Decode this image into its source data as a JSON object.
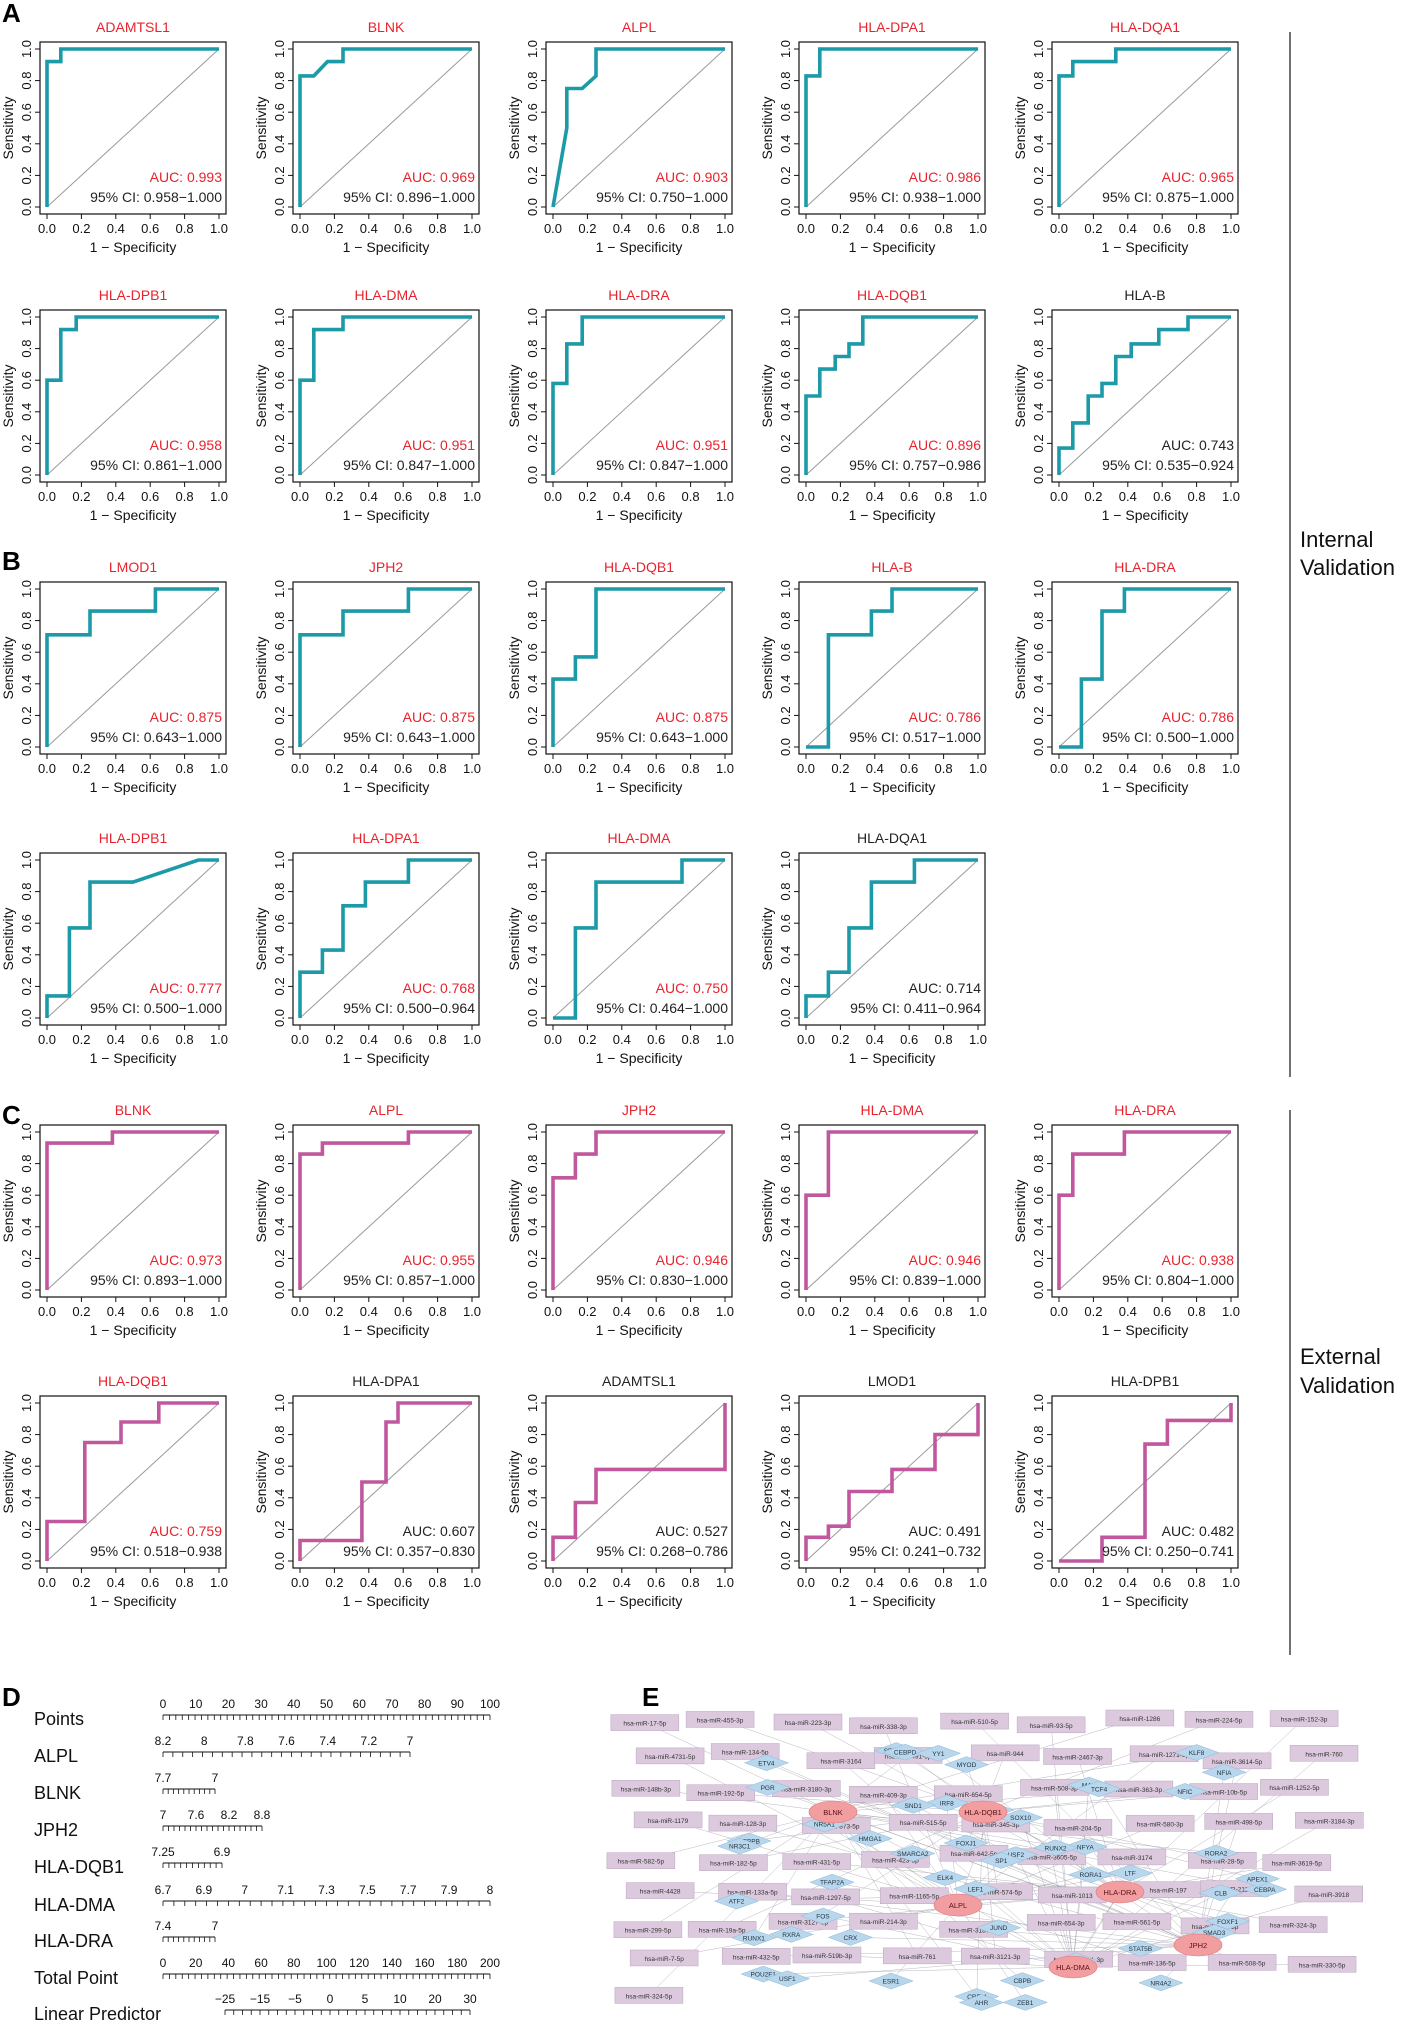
{
  "colors": {
    "teal": "#1c9aa8",
    "pink": "#c1589e",
    "red": "#e8232d",
    "black": "#222222",
    "gray": "#9a9a9a",
    "node_purple": "#dcc9de",
    "node_blue": "#b8d7ec",
    "node_pink": "#f29ea0"
  },
  "panel_labels": {
    "A": "A",
    "B": "B",
    "C": "C",
    "D": "D",
    "E": "E"
  },
  "side_labels": {
    "internal": [
      "Internal",
      "Validation"
    ],
    "external": [
      "External",
      "Validation"
    ]
  },
  "axis_labels": {
    "x": "1 − Specificity",
    "y": "Sensitivity",
    "ticks": [
      "0.0",
      "0.2",
      "0.4",
      "0.6",
      "0.8",
      "1.0"
    ]
  },
  "chart_data": [
    {
      "panel": "A",
      "type": "line",
      "title": "ADAMTSL1",
      "auc": "AUC: 0.993",
      "ci": "95% CI: 0.958−1.000",
      "sig": true,
      "color": "teal",
      "x": [
        0,
        0,
        0.0,
        0.08,
        0.08,
        1
      ],
      "y": [
        0,
        0.92,
        0.92,
        0.92,
        1,
        1
      ]
    },
    {
      "panel": "A",
      "type": "line",
      "title": "BLNK",
      "auc": "AUC: 0.969",
      "ci": "95% CI: 0.896−1.000",
      "sig": true,
      "color": "teal",
      "x": [
        0,
        0,
        0.08,
        0.16,
        0.25,
        0.25,
        1
      ],
      "y": [
        0,
        0.83,
        0.83,
        0.92,
        0.92,
        1,
        1
      ]
    },
    {
      "panel": "A",
      "type": "line",
      "title": "ALPL",
      "auc": "AUC: 0.903",
      "ci": "95% CI: 0.750−1.000",
      "sig": true,
      "color": "teal",
      "x": [
        0,
        0.08,
        0.08,
        0.17,
        0.25,
        0.25,
        1
      ],
      "y": [
        0,
        0.5,
        0.75,
        0.75,
        0.83,
        1,
        1
      ]
    },
    {
      "panel": "A",
      "type": "line",
      "title": "HLA-DPA1",
      "auc": "AUC: 0.986",
      "ci": "95% CI: 0.938−1.000",
      "sig": true,
      "color": "teal",
      "x": [
        0,
        0,
        0.08,
        0.08,
        1
      ],
      "y": [
        0,
        0.83,
        0.83,
        1,
        1
      ]
    },
    {
      "panel": "A",
      "type": "line",
      "title": "HLA-DQA1",
      "auc": "AUC: 0.965",
      "ci": "95% CI: 0.875−1.000",
      "sig": true,
      "color": "teal",
      "x": [
        0,
        0,
        0.08,
        0.08,
        0.33,
        0.33,
        1
      ],
      "y": [
        0,
        0.83,
        0.83,
        0.92,
        0.92,
        1,
        1
      ]
    },
    {
      "panel": "A",
      "type": "line",
      "title": "HLA-DPB1",
      "auc": "AUC: 0.958",
      "ci": "95% CI: 0.861−1.000",
      "sig": true,
      "color": "teal",
      "x": [
        0,
        0,
        0.08,
        0.08,
        0.17,
        0.17,
        1
      ],
      "y": [
        0,
        0.6,
        0.6,
        0.92,
        0.92,
        1,
        1
      ]
    },
    {
      "panel": "A",
      "type": "line",
      "title": "HLA-DMA",
      "auc": "AUC: 0.951",
      "ci": "95% CI: 0.847−1.000",
      "sig": true,
      "color": "teal",
      "x": [
        0,
        0,
        0.08,
        0.08,
        0.25,
        0.25,
        1
      ],
      "y": [
        0,
        0.6,
        0.6,
        0.92,
        0.92,
        1,
        1
      ]
    },
    {
      "panel": "A",
      "type": "line",
      "title": "HLA-DRA",
      "auc": "AUC: 0.951",
      "ci": "95% CI: 0.847−1.000",
      "sig": true,
      "color": "teal",
      "x": [
        0,
        0,
        0.08,
        0.08,
        0.17,
        0.17,
        1
      ],
      "y": [
        0,
        0.58,
        0.58,
        0.83,
        0.83,
        1,
        1
      ]
    },
    {
      "panel": "A",
      "type": "line",
      "title": "HLA-DQB1",
      "auc": "AUC: 0.896",
      "ci": "95% CI: 0.757−0.986",
      "sig": true,
      "color": "teal",
      "x": [
        0,
        0,
        0.08,
        0.08,
        0.17,
        0.17,
        0.25,
        0.25,
        0.33,
        0.33,
        1
      ],
      "y": [
        0,
        0.5,
        0.5,
        0.67,
        0.67,
        0.75,
        0.75,
        0.83,
        0.83,
        1,
        1
      ]
    },
    {
      "panel": "A",
      "type": "line",
      "title": "HLA-B",
      "auc": "AUC: 0.743",
      "ci": "95% CI: 0.535−0.924",
      "sig": false,
      "color": "teal",
      "x": [
        0,
        0,
        0.08,
        0.08,
        0.17,
        0.17,
        0.25,
        0.25,
        0.33,
        0.33,
        0.42,
        0.42,
        0.58,
        0.58,
        0.75,
        0.75,
        1
      ],
      "y": [
        0,
        0.17,
        0.17,
        0.33,
        0.33,
        0.5,
        0.5,
        0.58,
        0.58,
        0.75,
        0.75,
        0.83,
        0.83,
        0.92,
        0.92,
        1,
        1
      ]
    },
    {
      "panel": "B",
      "type": "line",
      "title": "LMOD1",
      "auc": "AUC: 0.875",
      "ci": "95% CI: 0.643−1.000",
      "sig": true,
      "color": "teal",
      "x": [
        0,
        0,
        0.25,
        0.25,
        0.63,
        0.63,
        1
      ],
      "y": [
        0,
        0.71,
        0.71,
        0.86,
        0.86,
        1,
        1
      ]
    },
    {
      "panel": "B",
      "type": "line",
      "title": "JPH2",
      "auc": "AUC: 0.875",
      "ci": "95% CI: 0.643−1.000",
      "sig": true,
      "color": "teal",
      "x": [
        0,
        0,
        0.25,
        0.25,
        0.63,
        0.63,
        1
      ],
      "y": [
        0,
        0.71,
        0.71,
        0.86,
        0.86,
        1,
        1
      ]
    },
    {
      "panel": "B",
      "type": "line",
      "title": "HLA-DQB1",
      "auc": "AUC: 0.875",
      "ci": "95% CI: 0.643−1.000",
      "sig": true,
      "color": "teal",
      "x": [
        0,
        0,
        0.13,
        0.13,
        0.25,
        0.25,
        1
      ],
      "y": [
        0,
        0.43,
        0.43,
        0.57,
        0.57,
        1,
        1
      ]
    },
    {
      "panel": "B",
      "type": "line",
      "title": "HLA-B",
      "auc": "AUC: 0.786",
      "ci": "95% CI: 0.517−1.000",
      "sig": true,
      "color": "teal",
      "x": [
        0,
        0.13,
        0.13,
        0.38,
        0.38,
        0.5,
        0.5,
        1
      ],
      "y": [
        0,
        0,
        0.71,
        0.71,
        0.86,
        0.86,
        1,
        1
      ]
    },
    {
      "panel": "B",
      "type": "line",
      "title": "HLA-DRA",
      "auc": "AUC: 0.786",
      "ci": "95% CI: 0.500−1.000",
      "sig": true,
      "color": "teal",
      "x": [
        0,
        0.13,
        0.13,
        0.25,
        0.25,
        0.38,
        0.38,
        1
      ],
      "y": [
        0,
        0,
        0.43,
        0.43,
        0.86,
        0.86,
        1,
        1
      ]
    },
    {
      "panel": "B",
      "type": "line",
      "title": "HLA-DPB1",
      "auc": "AUC: 0.777",
      "ci": "95% CI: 0.500−1.000",
      "sig": true,
      "color": "teal",
      "x": [
        0,
        0,
        0.13,
        0.13,
        0.25,
        0.25,
        0.5,
        0.88,
        1
      ],
      "y": [
        0,
        0.14,
        0.14,
        0.57,
        0.57,
        0.86,
        0.86,
        1,
        1
      ]
    },
    {
      "panel": "B",
      "type": "line",
      "title": "HLA-DPA1",
      "auc": "AUC: 0.768",
      "ci": "95% CI: 0.500−0.964",
      "sig": true,
      "color": "teal",
      "x": [
        0,
        0,
        0.13,
        0.13,
        0.25,
        0.25,
        0.38,
        0.38,
        0.63,
        0.63,
        1
      ],
      "y": [
        0,
        0.29,
        0.29,
        0.43,
        0.43,
        0.71,
        0.71,
        0.86,
        0.86,
        1,
        1
      ]
    },
    {
      "panel": "B",
      "type": "line",
      "title": "HLA-DMA",
      "auc": "AUC: 0.750",
      "ci": "95% CI: 0.464−1.000",
      "sig": true,
      "color": "teal",
      "x": [
        0,
        0.13,
        0.13,
        0.25,
        0.25,
        0.75,
        0.75,
        1
      ],
      "y": [
        0,
        0,
        0.57,
        0.57,
        0.86,
        0.86,
        1,
        1
      ]
    },
    {
      "panel": "B",
      "type": "line",
      "title": "HLA-DQA1",
      "auc": "AUC: 0.714",
      "ci": "95% CI: 0.411−0.964",
      "sig": false,
      "color": "teal",
      "x": [
        0,
        0,
        0.13,
        0.13,
        0.25,
        0.25,
        0.38,
        0.38,
        0.63,
        0.63,
        1
      ],
      "y": [
        0,
        0.14,
        0.14,
        0.29,
        0.29,
        0.57,
        0.57,
        0.86,
        0.86,
        1,
        1
      ]
    },
    {
      "panel": "C",
      "type": "line",
      "title": "BLNK",
      "auc": "AUC: 0.973",
      "ci": "95% CI: 0.893−1.000",
      "sig": true,
      "color": "pink",
      "x": [
        0,
        0,
        0.38,
        0.38,
        1
      ],
      "y": [
        0,
        0.93,
        0.93,
        1,
        1
      ]
    },
    {
      "panel": "C",
      "type": "line",
      "title": "ALPL",
      "auc": "AUC: 0.955",
      "ci": "95% CI: 0.857−1.000",
      "sig": true,
      "color": "pink",
      "x": [
        0,
        0,
        0.13,
        0.13,
        0.63,
        0.63,
        1
      ],
      "y": [
        0,
        0.86,
        0.86,
        0.93,
        0.93,
        1,
        1
      ]
    },
    {
      "panel": "C",
      "type": "line",
      "title": "JPH2",
      "auc": "AUC: 0.946",
      "ci": "95% CI: 0.830−1.000",
      "sig": true,
      "color": "pink",
      "x": [
        0,
        0,
        0.13,
        0.13,
        0.25,
        0.25,
        1
      ],
      "y": [
        0,
        0.71,
        0.71,
        0.86,
        0.86,
        1,
        1
      ]
    },
    {
      "panel": "C",
      "type": "line",
      "title": "HLA-DMA",
      "auc": "AUC: 0.946",
      "ci": "95% CI: 0.839−1.000",
      "sig": true,
      "color": "pink",
      "x": [
        0,
        0,
        0.13,
        0.13,
        1
      ],
      "y": [
        0,
        0.6,
        0.6,
        1,
        1
      ]
    },
    {
      "panel": "C",
      "type": "line",
      "title": "HLA-DRA",
      "auc": "AUC: 0.938",
      "ci": "95% CI: 0.804−1.000",
      "sig": true,
      "color": "pink",
      "x": [
        0,
        0,
        0.08,
        0.08,
        0.38,
        0.38,
        1
      ],
      "y": [
        0,
        0.6,
        0.6,
        0.86,
        0.86,
        1,
        1
      ]
    },
    {
      "panel": "C",
      "type": "line",
      "title": "HLA-DQB1",
      "auc": "AUC: 0.759",
      "ci": "95% CI: 0.518−0.938",
      "sig": true,
      "color": "pink",
      "x": [
        0,
        0,
        0.22,
        0.22,
        0.43,
        0.43,
        0.65,
        0.65,
        1
      ],
      "y": [
        0,
        0.25,
        0.25,
        0.75,
        0.75,
        0.88,
        0.88,
        1,
        1
      ]
    },
    {
      "panel": "C",
      "type": "line",
      "title": "HLA-DPA1",
      "auc": "AUC: 0.607",
      "ci": "95% CI: 0.357−0.830",
      "sig": false,
      "color": "pink",
      "x": [
        0,
        0,
        0.36,
        0.36,
        0.5,
        0.5,
        0.57,
        0.57,
        1
      ],
      "y": [
        0,
        0.13,
        0.13,
        0.5,
        0.5,
        0.88,
        0.88,
        1,
        1
      ]
    },
    {
      "panel": "C",
      "type": "line",
      "title": "ADAMTSL1",
      "auc": "AUC: 0.527",
      "ci": "95% CI: 0.268−0.786",
      "sig": false,
      "color": "pink",
      "x": [
        0,
        0,
        0.13,
        0.13,
        0.25,
        0.25,
        1,
        1
      ],
      "y": [
        0,
        0.15,
        0.15,
        0.37,
        0.37,
        0.58,
        0.58,
        1
      ]
    },
    {
      "panel": "C",
      "type": "line",
      "title": "LMOD1",
      "auc": "AUC: 0.491",
      "ci": "95% CI: 0.241−0.732",
      "sig": false,
      "color": "pink",
      "x": [
        0,
        0,
        0.13,
        0.13,
        0.25,
        0.25,
        0.5,
        0.5,
        0.75,
        0.75,
        1,
        1
      ],
      "y": [
        0,
        0.15,
        0.15,
        0.22,
        0.22,
        0.44,
        0.44,
        0.58,
        0.58,
        0.8,
        0.8,
        1
      ]
    },
    {
      "panel": "C",
      "type": "line",
      "title": "HLA-DPB1",
      "auc": "AUC: 0.482",
      "ci": "95% CI: 0.250−0.741",
      "sig": false,
      "color": "pink",
      "x": [
        0,
        0.25,
        0.25,
        0.5,
        0.5,
        0.63,
        0.63,
        1,
        1
      ],
      "y": [
        0,
        0,
        0.15,
        0.15,
        0.74,
        0.74,
        0.89,
        0.89,
        1
      ]
    }
  ],
  "nomogram": {
    "rows": [
      {
        "label": "Points",
        "ticks": [
          "0",
          "10",
          "20",
          "30",
          "40",
          "50",
          "60",
          "70",
          "80",
          "90",
          "100"
        ]
      },
      {
        "label": "ALPL",
        "ticks": [
          "8.2",
          "8",
          "7.8",
          "7.6",
          "7.4",
          "7.2",
          "7"
        ]
      },
      {
        "label": "BLNK",
        "ticks": [
          "7.7",
          "7"
        ]
      },
      {
        "label": "JPH2",
        "ticks": [
          "7",
          "7.6",
          "8.2",
          "8.8"
        ]
      },
      {
        "label": "HLA-DQB1",
        "ticks": [
          "7.25",
          "6.9"
        ]
      },
      {
        "label": "HLA-DMA",
        "ticks": [
          "6.7",
          "6.9",
          "7",
          "7.1",
          "7.3",
          "7.5",
          "7.7",
          "7.9",
          "8"
        ]
      },
      {
        "label": "HLA-DRA",
        "ticks": [
          "7.4",
          "7"
        ]
      },
      {
        "label": "Total Point",
        "ticks": [
          "0",
          "20",
          "40",
          "60",
          "80",
          "100",
          "120",
          "140",
          "160",
          "180",
          "200"
        ]
      },
      {
        "label": "Linear Predictor",
        "ticks": [
          "−25",
          "−15",
          "−5",
          "0",
          "5",
          "10",
          "20",
          "30"
        ]
      }
    ]
  },
  "network": {
    "hubs": [
      "BLNK",
      "HLA-DQB1",
      "HLA-DRA",
      "ALPL",
      "JPH2",
      "HLA-DMA"
    ],
    "tfs": [
      "HMGA1",
      "POU2F1",
      "ETV4",
      "NR5A1",
      "ATF2",
      "FOXJ1",
      "CBPB",
      "USF2",
      "USF1",
      "RORA1",
      "FOXF1",
      "CREM",
      "RORA2",
      "JUND",
      "NR4A2",
      "ZEB1",
      "MYC",
      "MYOD",
      "CEBPA",
      "NFYA",
      "STAT5B",
      "SP1",
      "SMAD3",
      "CEBPB",
      "AHR",
      "MAX",
      "TCF4",
      "TFAP2A",
      "SREBF1",
      "APEX1",
      "NR3C1",
      "FOS",
      "CRX",
      "ESR1",
      "RUNX2",
      "NFIC",
      "SMARCA2",
      "CLB",
      "PGR",
      "MAPK14",
      "ELK4",
      "CEBPD",
      "RUNX1",
      "LEF1",
      "NFIA",
      "IRF8",
      "YY1",
      "RXRA",
      "KLF8",
      "SOX10",
      "SND1",
      "LTF"
    ],
    "mirnas": [
      "hsa-miR-17-5p",
      "hsa-miR-455-3p",
      "hsa-miR-223-3p",
      "hsa-miR-338-3p",
      "hsa-miR-510-5p",
      "hsa-miR-93-5p",
      "hsa-miR-1286",
      "hsa-miR-224-5p",
      "hsa-miR-152-3p",
      "hsa-miR-4731-5p",
      "hsa-miR-134-5p",
      "hsa-miR-3164",
      "hsa-miR-491-5p",
      "hsa-miR-944",
      "hsa-miR-2467-3p",
      "hsa-miR-1271-5p",
      "hsa-miR-3614-5p",
      "hsa-miR-760",
      "hsa-miR-148b-3p",
      "hsa-miR-192-5p",
      "hsa-miR-3180-3p",
      "hsa-miR-409-3p",
      "hsa-miR-654-5p",
      "hsa-miR-508-3p",
      "hsa-miR-363-3p",
      "hsa-miR-10b-5p",
      "hsa-miR-1252-5p",
      "hsa-miR-1179",
      "hsa-miR-128-3p",
      "hsa-miR-873-5p",
      "hsa-miR-515-5p",
      "hsa-miR-345-3p",
      "hsa-miR-204-5p",
      "hsa-miR-580-3p",
      "hsa-miR-498-5p",
      "hsa-miR-3184-3p",
      "hsa-miR-582-5p",
      "hsa-miR-182-5p",
      "hsa-miR-431-5p",
      "hsa-miR-423-5p",
      "hsa-miR-642-5p",
      "hsa-miR-3605-5p",
      "hsa-miR-3174",
      "hsa-miR-28-5p",
      "hsa-miR-3619-5p",
      "hsa-miR-4428",
      "hsa-miR-133a-5p",
      "hsa-miR-1297-5p",
      "hsa-miR-1165-5p",
      "hsa-miR-574-5p",
      "hsa-miR-1013",
      "hsa-miR-197",
      "hsa-miR-211-5p",
      "hsa-miR-3918",
      "hsa-miR-299-5p",
      "hsa-miR-19a-5p",
      "hsa-miR-3127-5p",
      "hsa-miR-214-3p",
      "hsa-miR-3187-3p",
      "hsa-miR-654-3p",
      "hsa-miR-561-5p",
      "hsa-miR-339-5p",
      "hsa-miR-324-3p",
      "hsa-miR-7-5p",
      "hsa-miR-432-5p",
      "hsa-miR-519b-3p",
      "hsa-miR-761",
      "hsa-miR-3121-3p",
      "hsa-miR-1301-3p",
      "hsa-miR-136-5p",
      "hsa-miR-508-5p",
      "hsa-miR-330-5p",
      "hsa-miR-324-5p"
    ]
  }
}
